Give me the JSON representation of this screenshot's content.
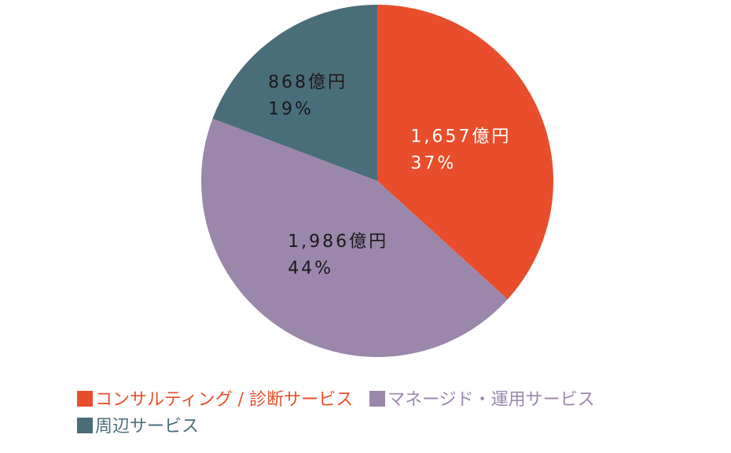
{
  "chart_data": {
    "type": "pie",
    "slices": [
      {
        "category": "コンサルティング / 診断サービス",
        "value": 1657,
        "value_label": "1,657億円",
        "percent_label": "37%",
        "color": "#e84e2b",
        "label_color": "#ffffff"
      },
      {
        "category": "マネージド・運用サービス",
        "value": 1986,
        "value_label": "1,986億円",
        "percent_label": "44%",
        "color": "#9b87ab",
        "label_color": "#1a1a1a"
      },
      {
        "category": "周辺サービス",
        "value": 868,
        "value_label": "868億円",
        "percent_label": "19%",
        "color": "#4a6d7a",
        "label_color": "#1a1a1a"
      }
    ],
    "legend_position": "bottom-left"
  }
}
